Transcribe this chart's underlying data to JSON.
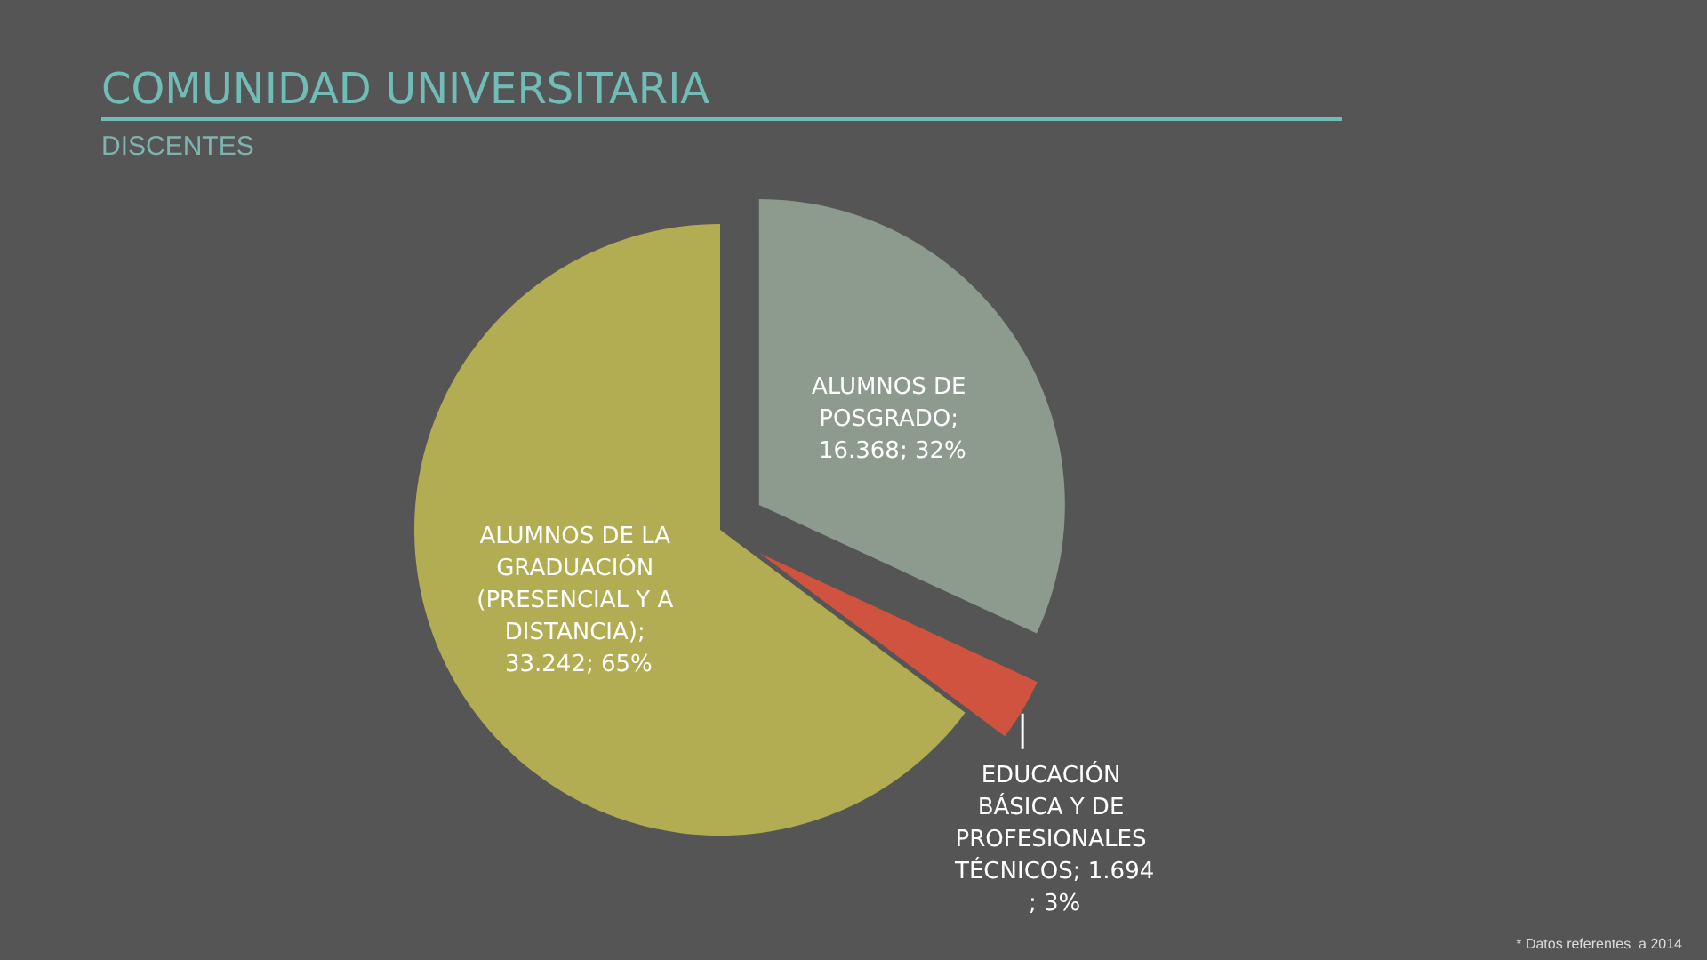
{
  "chart_data": {
    "type": "pie",
    "title": "COMUNIDAD UNIVERSITARIA",
    "subtitle": "DISCENTES",
    "categories": [
      "ALUMNOS DE POSGRADO",
      "EDUCACIÓN BÁSICA Y DE PROFESIONALES TÉCNICOS",
      "ALUMNOS DE LA GRADUACIÓN (PRESENCIAL Y A DISTANCIA)"
    ],
    "values": [
      16368,
      1694,
      33242
    ],
    "colors": [
      "#8d9b8f",
      "#d0533f",
      "#b2ad52"
    ],
    "value_labels": [
      "; 16.368; 32%",
      "; 1.694; 3%",
      "; 33.242; 65%"
    ],
    "annotations": [
      "* Datos referentes  a 2014"
    ]
  }
}
